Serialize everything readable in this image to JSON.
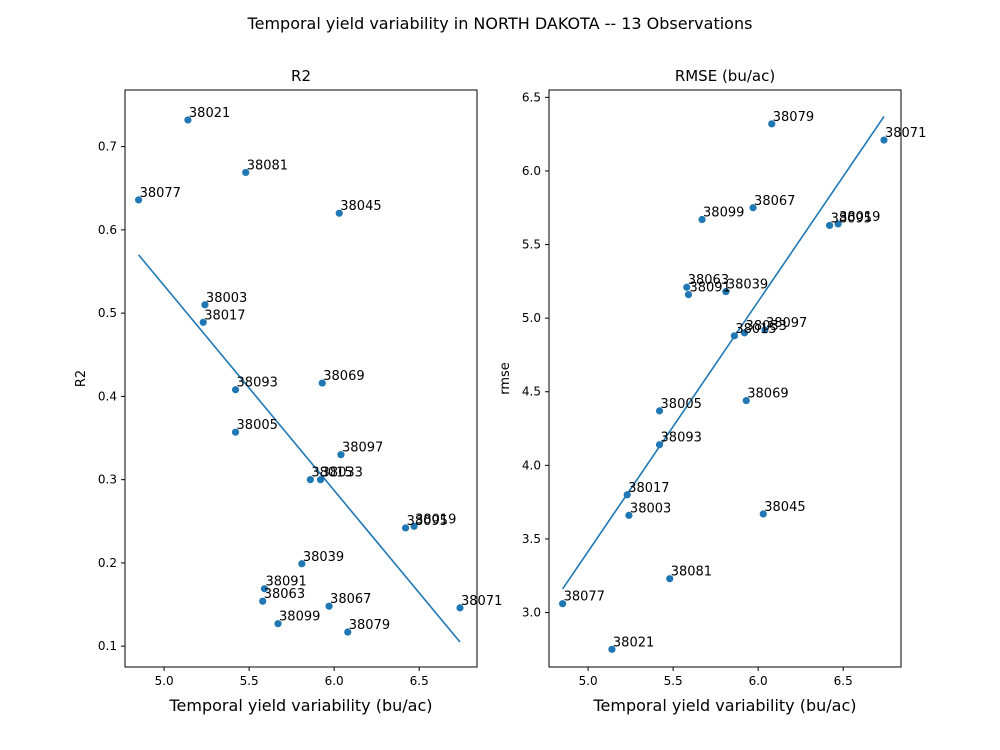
{
  "figure_title": "Temporal yield variability in NORTH DAKOTA -- 13 Observations",
  "colors": {
    "marker": "#1f77b4",
    "line": "#1f77b4",
    "axes": "#000000"
  },
  "chart_data": [
    {
      "type": "scatter",
      "title": "R2",
      "xlabel": "Temporal yield variability (bu/ac)",
      "ylabel": "R2",
      "xlim": [
        4.77,
        6.84
      ],
      "ylim": [
        0.075,
        0.768
      ],
      "xticks": [
        5.0,
        5.5,
        6.0,
        6.5
      ],
      "xtick_labels": [
        "5.0",
        "5.5",
        "6.0",
        "6.5"
      ],
      "yticks": [
        0.1,
        0.2,
        0.3,
        0.4,
        0.5,
        0.6,
        0.7
      ],
      "ytick_labels": [
        "0.1",
        "0.2",
        "0.3",
        "0.4",
        "0.5",
        "0.6",
        "0.7"
      ],
      "grid": false,
      "fit_line": {
        "x": [
          4.85,
          6.74
        ],
        "y": [
          0.57,
          0.105
        ]
      },
      "points": [
        {
          "label": "38021",
          "x": 5.14,
          "y": 0.732
        },
        {
          "label": "38081",
          "x": 5.48,
          "y": 0.669
        },
        {
          "label": "38077",
          "x": 4.85,
          "y": 0.636
        },
        {
          "label": "38045",
          "x": 6.03,
          "y": 0.62
        },
        {
          "label": "38003",
          "x": 5.24,
          "y": 0.51
        },
        {
          "label": "38017",
          "x": 5.23,
          "y": 0.489
        },
        {
          "label": "38069",
          "x": 5.93,
          "y": 0.416
        },
        {
          "label": "38093",
          "x": 5.42,
          "y": 0.408
        },
        {
          "label": "38005",
          "x": 5.42,
          "y": 0.357
        },
        {
          "label": "38097",
          "x": 6.04,
          "y": 0.33
        },
        {
          "label": "38015",
          "x": 5.86,
          "y": 0.3
        },
        {
          "label": "38033",
          "x": 5.92,
          "y": 0.3
        },
        {
          "label": "38019",
          "x": 6.47,
          "y": 0.244
        },
        {
          "label": "38095",
          "x": 6.42,
          "y": 0.242
        },
        {
          "label": "38039",
          "x": 5.81,
          "y": 0.199
        },
        {
          "label": "38091",
          "x": 5.59,
          "y": 0.169
        },
        {
          "label": "38063",
          "x": 5.58,
          "y": 0.154
        },
        {
          "label": "38067",
          "x": 5.97,
          "y": 0.148
        },
        {
          "label": "38071",
          "x": 6.74,
          "y": 0.146
        },
        {
          "label": "38099",
          "x": 5.67,
          "y": 0.127
        },
        {
          "label": "38079",
          "x": 6.08,
          "y": 0.117
        }
      ]
    },
    {
      "type": "scatter",
      "title": "RMSE (bu/ac)",
      "xlabel": "Temporal yield variability (bu/ac)",
      "ylabel": "rmse",
      "xlim": [
        4.77,
        6.84
      ],
      "ylim": [
        2.63,
        6.55
      ],
      "xticks": [
        5.0,
        5.5,
        6.0,
        6.5
      ],
      "xtick_labels": [
        "5.0",
        "5.5",
        "6.0",
        "6.5"
      ],
      "yticks": [
        3.0,
        3.5,
        4.0,
        4.5,
        5.0,
        5.5,
        6.0,
        6.5
      ],
      "ytick_labels": [
        "3.0",
        "3.5",
        "4.0",
        "4.5",
        "5.0",
        "5.5",
        "6.0",
        "6.5"
      ],
      "grid": false,
      "fit_line": {
        "x": [
          4.85,
          6.74
        ],
        "y": [
          3.16,
          6.37
        ]
      },
      "points": [
        {
          "label": "38079",
          "x": 6.08,
          "y": 6.32
        },
        {
          "label": "38071",
          "x": 6.74,
          "y": 6.21
        },
        {
          "label": "38067",
          "x": 5.97,
          "y": 5.75
        },
        {
          "label": "38099",
          "x": 5.67,
          "y": 5.67
        },
        {
          "label": "38019",
          "x": 6.47,
          "y": 5.64
        },
        {
          "label": "38095",
          "x": 6.42,
          "y": 5.63
        },
        {
          "label": "38063",
          "x": 5.58,
          "y": 5.21
        },
        {
          "label": "38039",
          "x": 5.81,
          "y": 5.18
        },
        {
          "label": "38091",
          "x": 5.59,
          "y": 5.16
        },
        {
          "label": "38097",
          "x": 6.04,
          "y": 4.92
        },
        {
          "label": "38033",
          "x": 5.92,
          "y": 4.9
        },
        {
          "label": "38015",
          "x": 5.86,
          "y": 4.88
        },
        {
          "label": "38069",
          "x": 5.93,
          "y": 4.44
        },
        {
          "label": "38005",
          "x": 5.42,
          "y": 4.37
        },
        {
          "label": "38093",
          "x": 5.42,
          "y": 4.14
        },
        {
          "label": "38017",
          "x": 5.23,
          "y": 3.8
        },
        {
          "label": "38045",
          "x": 6.03,
          "y": 3.67
        },
        {
          "label": "38003",
          "x": 5.24,
          "y": 3.66
        },
        {
          "label": "38081",
          "x": 5.48,
          "y": 3.23
        },
        {
          "label": "38077",
          "x": 4.85,
          "y": 3.06
        },
        {
          "label": "38021",
          "x": 5.14,
          "y": 2.75
        }
      ]
    }
  ]
}
